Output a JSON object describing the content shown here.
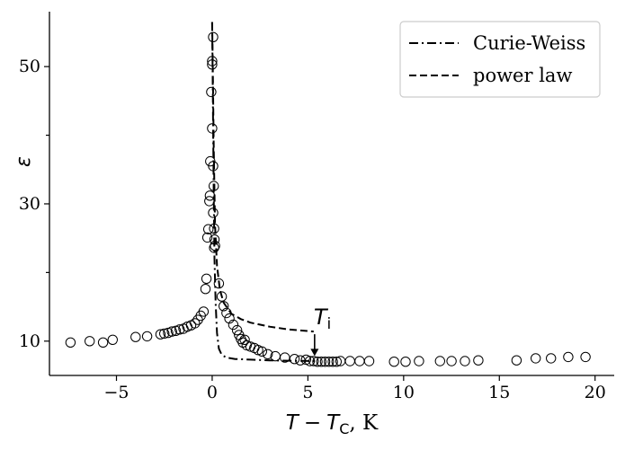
{
  "chart_data": {
    "type": "scatter",
    "title": "",
    "xlabel": "T − T_C, K",
    "xlabel_parts": {
      "var": "T",
      "minus": "−",
      "sub_var": "T",
      "sub": "C",
      "unit": ", K"
    },
    "ylabel": "ε",
    "xlim": [
      -8.5,
      21
    ],
    "ylim": [
      5,
      58
    ],
    "xticks": [
      -5,
      0,
      5,
      10,
      15,
      20
    ],
    "xtick_labels": [
      "−5",
      "0",
      "5",
      "10",
      "15",
      "20"
    ],
    "yticks": [
      10,
      30,
      50
    ],
    "ytick_labels": [
      "10",
      "30",
      "50"
    ],
    "ytick_minor": [
      20,
      40
    ],
    "grid": false,
    "legend_position": "top-right",
    "series": [
      {
        "name": "",
        "kind": "points",
        "marker": "open-circle",
        "points": [
          [
            -7.4,
            9.8
          ],
          [
            -6.4,
            10.0
          ],
          [
            -5.7,
            9.8
          ],
          [
            -5.2,
            10.2
          ],
          [
            -4.0,
            10.6
          ],
          [
            -3.4,
            10.7
          ],
          [
            -2.7,
            11.0
          ],
          [
            -2.5,
            11.1
          ],
          [
            -2.3,
            11.2
          ],
          [
            -2.1,
            11.4
          ],
          [
            -1.9,
            11.5
          ],
          [
            -1.7,
            11.7
          ],
          [
            -1.5,
            11.8
          ],
          [
            -1.3,
            12.1
          ],
          [
            -1.1,
            12.3
          ],
          [
            -0.9,
            12.6
          ],
          [
            -0.75,
            13.1
          ],
          [
            -0.6,
            13.7
          ],
          [
            -0.45,
            14.3
          ],
          [
            -0.35,
            17.6
          ],
          [
            -0.3,
            19.1
          ],
          [
            -0.25,
            25.1
          ],
          [
            -0.2,
            26.3
          ],
          [
            -0.15,
            30.4
          ],
          [
            -0.12,
            31.2
          ],
          [
            -0.1,
            36.2
          ],
          [
            -0.05,
            46.3
          ],
          [
            0.0,
            50.3
          ],
          [
            0.0,
            50.8
          ],
          [
            0.05,
            54.3
          ],
          [
            0.0,
            41.0
          ],
          [
            0.05,
            35.5
          ],
          [
            0.08,
            32.6
          ],
          [
            0.05,
            28.7
          ],
          [
            0.1,
            26.4
          ],
          [
            0.12,
            24.8
          ],
          [
            0.15,
            23.9
          ],
          [
            0.1,
            23.6
          ],
          [
            0.35,
            18.4
          ],
          [
            0.5,
            16.5
          ],
          [
            0.6,
            15.1
          ],
          [
            0.75,
            14.1
          ],
          [
            0.9,
            13.3
          ],
          [
            1.1,
            12.4
          ],
          [
            1.3,
            11.6
          ],
          [
            1.4,
            10.9
          ],
          [
            1.5,
            10.3
          ],
          [
            1.6,
            9.8
          ],
          [
            1.7,
            10.2
          ],
          [
            1.8,
            9.4
          ],
          [
            2.0,
            9.2
          ],
          [
            2.2,
            9.0
          ],
          [
            2.4,
            8.7
          ],
          [
            2.6,
            8.5
          ],
          [
            2.9,
            8.1
          ],
          [
            3.3,
            7.8
          ],
          [
            3.8,
            7.6
          ],
          [
            4.3,
            7.4
          ],
          [
            4.6,
            7.2
          ],
          [
            4.9,
            7.3
          ],
          [
            5.1,
            7.1
          ],
          [
            5.3,
            7.1
          ],
          [
            5.5,
            7.0
          ],
          [
            5.7,
            7.0
          ],
          [
            5.9,
            7.0
          ],
          [
            6.1,
            7.0
          ],
          [
            6.3,
            7.0
          ],
          [
            6.5,
            7.0
          ],
          [
            6.7,
            7.1
          ],
          [
            7.2,
            7.1
          ],
          [
            7.7,
            7.1
          ],
          [
            8.2,
            7.1
          ],
          [
            9.5,
            7.0
          ],
          [
            10.1,
            7.0
          ],
          [
            10.8,
            7.1
          ],
          [
            11.9,
            7.1
          ],
          [
            12.5,
            7.1
          ],
          [
            13.2,
            7.1
          ],
          [
            13.9,
            7.2
          ],
          [
            15.9,
            7.2
          ],
          [
            16.9,
            7.5
          ],
          [
            17.7,
            7.5
          ],
          [
            18.6,
            7.7
          ],
          [
            19.5,
            7.7
          ]
        ]
      },
      {
        "name": "Curie-Weiss",
        "kind": "line",
        "style": "dash-dot",
        "points": [
          [
            0.0,
            56.5
          ],
          [
            0.02,
            50.0
          ],
          [
            0.05,
            41.0
          ],
          [
            0.08,
            31.0
          ],
          [
            0.12,
            22.0
          ],
          [
            0.18,
            15.5
          ],
          [
            0.25,
            11.2
          ],
          [
            0.35,
            8.9
          ],
          [
            0.5,
            8.0
          ],
          [
            0.75,
            7.6
          ],
          [
            1.2,
            7.4
          ],
          [
            2.0,
            7.3
          ],
          [
            3.0,
            7.2
          ],
          [
            4.0,
            7.15
          ],
          [
            5.4,
            7.1
          ]
        ]
      },
      {
        "name": "power law",
        "kind": "line",
        "style": "dashed",
        "points": [
          [
            0.0,
            56.5
          ],
          [
            0.03,
            50.0
          ],
          [
            0.08,
            38.0
          ],
          [
            0.15,
            27.0
          ],
          [
            0.25,
            21.0
          ],
          [
            0.4,
            17.5
          ],
          [
            0.6,
            15.6
          ],
          [
            1.0,
            14.0
          ],
          [
            1.5,
            13.2
          ],
          [
            2.0,
            12.7
          ],
          [
            3.0,
            12.1
          ],
          [
            4.0,
            11.7
          ],
          [
            5.3,
            11.4
          ]
        ]
      }
    ],
    "annotation": {
      "label_var": "T",
      "label_sub": "i",
      "x": 5.35,
      "y_from": 11.4,
      "y_to": 7.3
    }
  }
}
